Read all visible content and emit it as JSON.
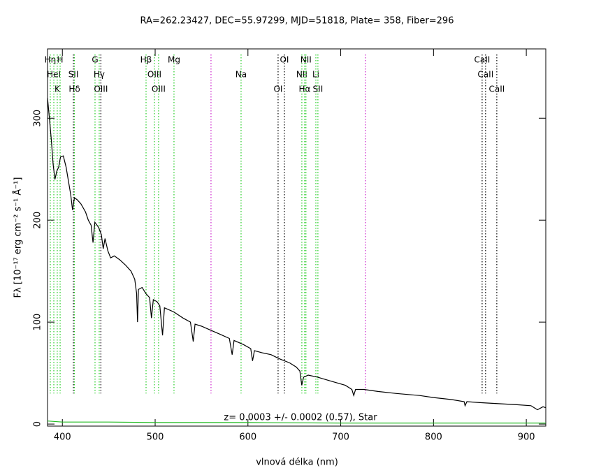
{
  "chart_data": {
    "type": "line",
    "title": "RA=262.23427, DEC=55.97299, MJD=51818, Plate= 358, Fiber=296",
    "xlabel": "vlnová délka (nm)",
    "ylabel": "Fλ [10⁻¹⁷ erg cm⁻² s⁻¹ Å⁻¹]",
    "annotation": "z= 0.0003 +/- 0.0002 (0.57), Star",
    "xlim": [
      384,
      921
    ],
    "ylim": [
      -2,
      368
    ],
    "xticks": [
      400,
      500,
      600,
      700,
      800,
      900
    ],
    "yticks": [
      0,
      100,
      200,
      300
    ],
    "series": [
      {
        "color": "#000000",
        "x": [
          384,
          386,
          388,
          390,
          392,
          394,
          396,
          398,
          401,
          404,
          407,
          409,
          411,
          413,
          416,
          420,
          425,
          428,
          431,
          433,
          435,
          439,
          442,
          444,
          446,
          449,
          452,
          456,
          462,
          468,
          474,
          478,
          480,
          481,
          482,
          486,
          490,
          494,
          496,
          498,
          502,
          505,
          508,
          510,
          520,
          530,
          538,
          541,
          543,
          550,
          560,
          570,
          580,
          583,
          585,
          595,
          603,
          605,
          607,
          615,
          625,
          634,
          645,
          652,
          656,
          658,
          660,
          665,
          675,
          690,
          705,
          712,
          714,
          716,
          725,
          740,
          760,
          785,
          800,
          820,
          833,
          834,
          836,
          850,
          870,
          890,
          905,
          912,
          918,
          921
        ],
        "values": [
          320,
          300,
          280,
          255,
          240,
          248,
          252,
          262,
          263,
          252,
          236,
          225,
          210,
          222,
          220,
          216,
          208,
          200,
          195,
          178,
          198,
          193,
          186,
          172,
          182,
          170,
          163,
          165,
          161,
          156,
          150,
          142,
          128,
          100,
          132,
          134,
          128,
          124,
          104,
          122,
          120,
          116,
          87,
          114,
          110,
          104,
          100,
          81,
          98,
          96,
          92,
          88,
          84,
          68,
          82,
          78,
          74,
          62,
          72,
          70,
          68,
          64,
          60,
          56,
          52,
          38,
          46,
          48,
          46,
          42,
          38,
          34,
          28,
          34,
          34,
          32,
          30,
          28,
          26,
          24,
          22,
          18,
          22,
          21,
          20,
          19,
          18,
          14,
          17,
          16
        ]
      },
      {
        "color": "#22bb22",
        "x": [
          384,
          400,
          450,
          500,
          600,
          700,
          800,
          921
        ],
        "values": [
          3,
          2,
          2,
          1.5,
          1.5,
          1,
          1,
          1
        ]
      }
    ],
    "lines": [
      {
        "label": "Hη",
        "x": 387.0,
        "color": "#22cc22"
      },
      {
        "label": "HeI",
        "x": 390.8,
        "color": "#22cc22"
      },
      {
        "label": "K",
        "x": 394.5,
        "color": "#22cc22"
      },
      {
        "label": "H",
        "x": 397.6,
        "color": "#22cc22"
      },
      {
        "label": "SII",
        "x": 411.9,
        "color": "#000000"
      },
      {
        "label": "Hδ",
        "x": 413.0,
        "color": "#22cc22"
      },
      {
        "label": "G",
        "x": 435.2,
        "color": "#22cc22"
      },
      {
        "label": "Hγ",
        "x": 439.7,
        "color": "#22cc22"
      },
      {
        "label": "OIII",
        "x": 441.5,
        "color": "#000000"
      },
      {
        "label": "Hβ",
        "x": 490.2,
        "color": "#22cc22"
      },
      {
        "label": "OIII",
        "x": 499.2,
        "color": "#22cc22"
      },
      {
        "label": "OIII",
        "x": 503.7,
        "color": "#22cc22"
      },
      {
        "label": "Mg",
        "x": 520.3,
        "color": "#22cc22"
      },
      {
        "label": null,
        "x": 560.2,
        "color": "#cc22cc"
      },
      {
        "label": "Na",
        "x": 592.6,
        "color": "#22cc22"
      },
      {
        "label": "OI",
        "x": 632.5,
        "color": "#000000"
      },
      {
        "label": "OI",
        "x": 639.3,
        "color": "#000000"
      },
      {
        "label": "NII",
        "x": 658.1,
        "color": "#22cc22"
      },
      {
        "label": "Hα",
        "x": 661.1,
        "color": "#22cc22"
      },
      {
        "label": "NII",
        "x": 662.5,
        "color": "#22cc22"
      },
      {
        "label": "Li",
        "x": 673.2,
        "color": "#22cc22"
      },
      {
        "label": "SII",
        "x": 675.4,
        "color": "#22cc22"
      },
      {
        "label": null,
        "x": 726.6,
        "color": "#cc22cc"
      },
      {
        "label": "CaII",
        "x": 852.4,
        "color": "#000000"
      },
      {
        "label": "CaII",
        "x": 856.1,
        "color": "#000000"
      },
      {
        "label": "CaII",
        "x": 868.2,
        "color": "#000000"
      }
    ]
  }
}
